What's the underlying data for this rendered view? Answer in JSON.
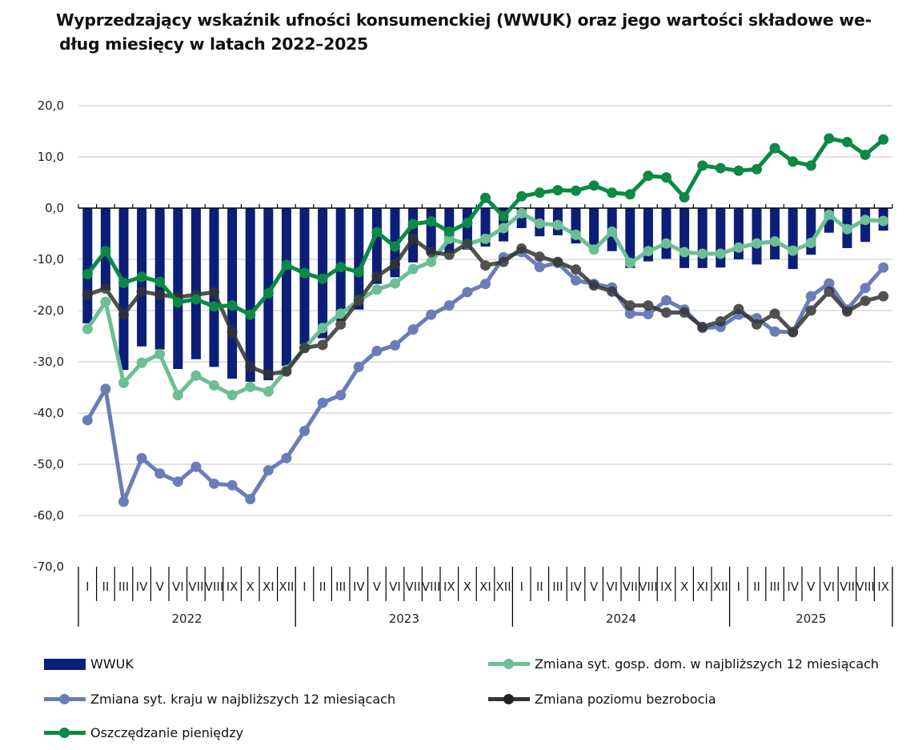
{
  "chart_data": {
    "type": "bar+line",
    "title_lines": [
      "Wyprzedzający wskaźnik ufności konsumenckiej (WWUK) oraz jego wartości składowe we-",
      "dług miesięcy w latach 2022–2025"
    ],
    "xlabel": "",
    "ylabel": "",
    "ylim": [
      -70,
      20
    ],
    "yticks": [
      "20,0",
      "10,0",
      "0,0",
      "-10,0",
      "-20,0",
      "-30,0",
      "-40,0",
      "-50,0",
      "-60,0",
      "-70,0"
    ],
    "ytick_values": [
      20,
      10,
      0,
      -10,
      -20,
      -30,
      -40,
      -50,
      -60,
      -70
    ],
    "grid": "horizontal",
    "legend_position": "bottom",
    "years": [
      {
        "label": "2022",
        "months": [
          "I",
          "II",
          "III",
          "IV",
          "V",
          "VI",
          "VII",
          "VIII",
          "IX",
          "X",
          "XI",
          "XII"
        ]
      },
      {
        "label": "2023",
        "months": [
          "I",
          "II",
          "III",
          "IV",
          "V",
          "VI",
          "VII",
          "VIII",
          "IX",
          "X",
          "XI",
          "XII"
        ]
      },
      {
        "label": "2024",
        "months": [
          "I",
          "II",
          "III",
          "IV",
          "V",
          "VI",
          "VII",
          "VIII",
          "IX",
          "X",
          "XI",
          "XII"
        ]
      },
      {
        "label": "2025",
        "months": [
          "I",
          "II",
          "III",
          "IV",
          "V",
          "VI",
          "VII",
          "VIII",
          "IX"
        ]
      }
    ],
    "series": [
      {
        "name": "WWUK",
        "kind": "bar",
        "color": "#0b1f78",
        "values": [
          -22.5,
          -16.0,
          -31.6,
          -27.0,
          -27.6,
          -31.4,
          -29.5,
          -31.0,
          -33.3,
          -33.9,
          -33.6,
          -30.8,
          -26.6,
          -25.4,
          -22.0,
          -19.8,
          -14.8,
          -13.5,
          -10.6,
          -9.0,
          -8.8,
          -8.1,
          -7.5,
          -6.5,
          -3.9,
          -5.5,
          -5.3,
          -6.9,
          -8.4,
          -8.4,
          -11.7,
          -10.4,
          -9.9,
          -11.7,
          -11.7,
          -11.6,
          -10.0,
          -11.0,
          -10.0,
          -11.9,
          -9.1,
          -4.8,
          -7.8,
          -6.6,
          -4.4
        ]
      },
      {
        "name": "Zmiana syt. gosp. dom. w najbliższych 12 miesiącach",
        "kind": "line",
        "color": "#6cbf95",
        "values": [
          -23.6,
          -18.3,
          -34.1,
          -30.2,
          -28.5,
          -36.5,
          -32.7,
          -34.6,
          -36.5,
          -34.9,
          -35.8,
          -31.6,
          -27.3,
          -23.4,
          -20.6,
          -18.0,
          -15.9,
          -14.7,
          -11.9,
          -10.5,
          -6.0,
          -7.0,
          -6.0,
          -3.9,
          -1.0,
          -3.0,
          -3.3,
          -5.2,
          -8.1,
          -4.6,
          -10.7,
          -8.4,
          -6.9,
          -8.6,
          -8.9,
          -8.9,
          -7.7,
          -6.9,
          -6.5,
          -8.3,
          -6.8,
          -1.3,
          -4.1,
          -2.3,
          -2.5
        ]
      },
      {
        "name": "Zmiana syt. kraju w najbliższych 12 miesiącach",
        "kind": "line",
        "color": "#6a7db8",
        "values": [
          -41.4,
          -35.3,
          -57.3,
          -48.8,
          -51.8,
          -53.4,
          -50.5,
          -53.8,
          -54.1,
          -56.8,
          -51.2,
          -48.8,
          -43.5,
          -38.0,
          -36.5,
          -31.0,
          -27.9,
          -26.8,
          -23.7,
          -20.8,
          -19.0,
          -16.4,
          -14.8,
          -9.6,
          -8.6,
          -11.5,
          -10.7,
          -14.1,
          -14.8,
          -15.5,
          -20.6,
          -20.7,
          -18.0,
          -19.8,
          -23.4,
          -23.2,
          -20.8,
          -21.5,
          -24.1,
          -24.2,
          -17.2,
          -14.7,
          -19.8,
          -15.6,
          -11.6
        ]
      },
      {
        "name": "Zmiana poziomu bezrobocia",
        "kind": "line",
        "color": "#333333",
        "values": [
          -16.9,
          -15.7,
          -20.8,
          -16.3,
          -16.9,
          -17.4,
          -16.9,
          -16.4,
          -24.2,
          -31.0,
          -32.4,
          -31.9,
          -27.3,
          -26.7,
          -22.7,
          -18.0,
          -13.3,
          -11.0,
          -6.0,
          -8.6,
          -9.1,
          -6.9,
          -11.2,
          -10.5,
          -7.9,
          -9.5,
          -10.5,
          -12.0,
          -15.1,
          -16.3,
          -19.0,
          -19.0,
          -20.4,
          -20.4,
          -23.2,
          -22.1,
          -19.7,
          -22.7,
          -20.6,
          -24.2,
          -20.0,
          -16.3,
          -20.2,
          -18.1,
          -17.2
        ]
      },
      {
        "name": "Oszczędzanie pieniędzy",
        "kind": "line",
        "color": "#0a8a45",
        "values": [
          -12.9,
          -8.4,
          -14.6,
          -13.4,
          -14.4,
          -18.4,
          -17.8,
          -19.2,
          -19.0,
          -20.8,
          -16.6,
          -11.1,
          -12.7,
          -13.8,
          -11.5,
          -12.5,
          -4.7,
          -7.5,
          -3.1,
          -2.6,
          -4.6,
          -2.9,
          2.0,
          -1.6,
          2.3,
          3.0,
          3.5,
          3.4,
          4.4,
          3.0,
          2.7,
          6.3,
          6.0,
          2.1,
          8.3,
          7.8,
          7.3,
          7.6,
          11.7,
          9.1,
          8.3,
          13.6,
          12.9,
          10.4,
          13.4
        ]
      }
    ],
    "legend_order": [
      0,
      1,
      2,
      3,
      4
    ]
  }
}
